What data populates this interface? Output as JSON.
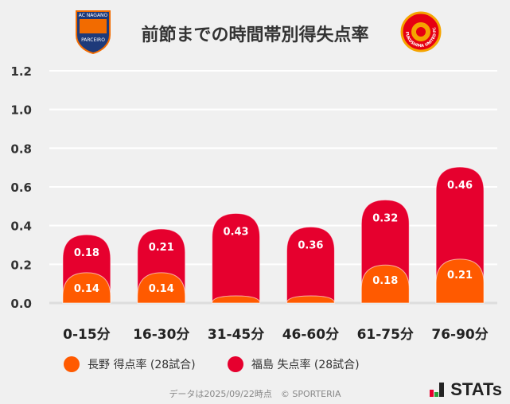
{
  "header": {
    "title": "前節までの時間帯別得失点率",
    "left_logo_text": "AC NAGANO PARCEIRO",
    "right_logo_text": "FUKUSHIMA UNITED FC"
  },
  "colors": {
    "nagano": "#ff5a00",
    "fukushima": "#e6002e"
  },
  "chart_data": {
    "type": "bar",
    "stacked": true,
    "categories": [
      "0-15分",
      "16-30分",
      "31-45分",
      "46-60分",
      "61-75分",
      "76-90分"
    ],
    "series": [
      {
        "name": "長野 得点率 (28試合)",
        "values": [
          0.14,
          0.14,
          0,
          0,
          0.18,
          0.21
        ],
        "labels": [
          "0.14",
          "0.14",
          "",
          "",
          "0.18",
          "0.21"
        ]
      },
      {
        "name": "福島 失点率 (28試合)",
        "values": [
          0.18,
          0.21,
          0.43,
          0.36,
          0.32,
          0.46
        ],
        "labels": [
          "0.18",
          "0.21",
          "0.43",
          "0.36",
          "0.32",
          "0.46"
        ]
      }
    ],
    "ylim": [
      0,
      1.2
    ],
    "yticks": [
      "0.0",
      "0.2",
      "0.4",
      "0.6",
      "0.8",
      "1.0",
      "1.2"
    ],
    "grid": true,
    "legend": "bottom"
  },
  "footer": {
    "note": "データは2025/09/22時点　© SPORTERIA",
    "brand": "STATs"
  }
}
